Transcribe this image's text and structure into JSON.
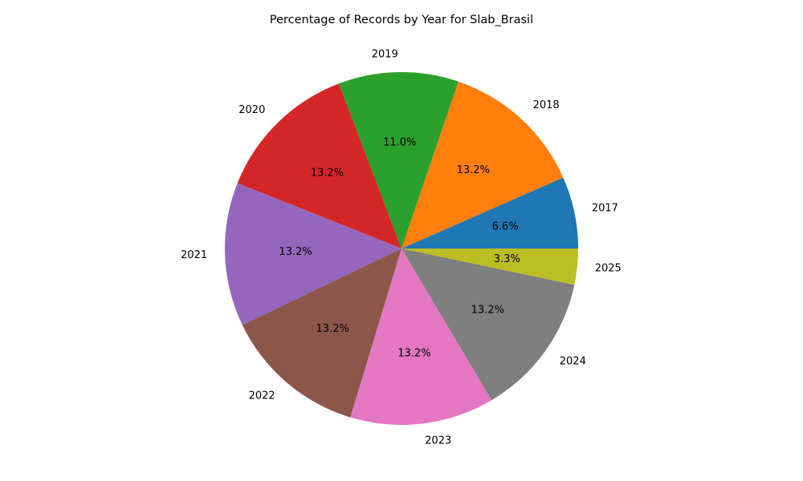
{
  "chart_data": {
    "type": "pie",
    "title": "Percentage of Records by Year for Slab_Brasil",
    "categories": [
      "2017",
      "2018",
      "2019",
      "2020",
      "2021",
      "2022",
      "2023",
      "2024",
      "2025"
    ],
    "values": [
      6.6,
      13.2,
      11.0,
      13.2,
      13.2,
      13.2,
      13.2,
      13.2,
      3.3
    ],
    "percent_labels": [
      "6.6%",
      "13.2%",
      "11.0%",
      "13.2%",
      "13.2%",
      "13.2%",
      "13.2%",
      "13.2%",
      "3.3%"
    ],
    "colors": [
      "#1f77b4",
      "#ff7f0e",
      "#2ca02c",
      "#d62728",
      "#9467bd",
      "#8c564b",
      "#e377c2",
      "#7f7f7f",
      "#bcbd22"
    ],
    "start_angle": 0,
    "direction": "counterclockwise",
    "legend": "none"
  }
}
